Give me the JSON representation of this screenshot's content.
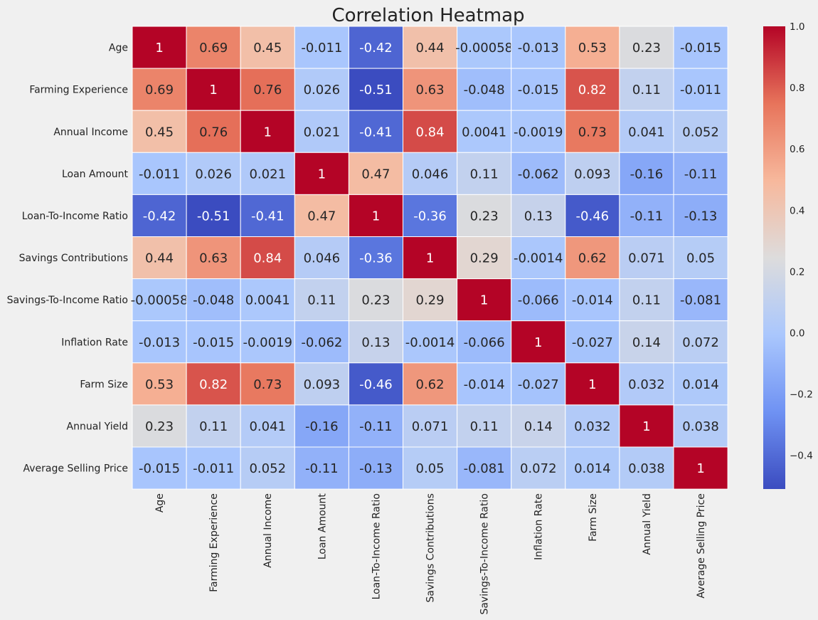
{
  "chart_data": {
    "type": "heatmap",
    "title": "Correlation Heatmap",
    "colormap": "coolwarm",
    "colormap_stops": [
      "#3b4cc0",
      "#6f92f3",
      "#aac7fd",
      "#dddcdc",
      "#f7b89c",
      "#e7745b",
      "#b40426"
    ],
    "background_color": "#f0f0f0",
    "cell_border_color": "#ffffff",
    "labels": [
      "Age",
      "Farming Experience",
      "Annual Income",
      "Loan Amount",
      "Loan-To-Income Ratio",
      "Savings Contributions",
      "Savings-To-Income Ratio",
      "Inflation Rate",
      "Farm Size",
      "Annual Yield",
      "Average Selling Price"
    ],
    "values": [
      [
        "1",
        "0.69",
        "0.45",
        "-0.011",
        "-0.42",
        "0.44",
        "-0.00058",
        "-0.013",
        "0.53",
        "0.23",
        "-0.015"
      ],
      [
        "0.69",
        "1",
        "0.76",
        "0.026",
        "-0.51",
        "0.63",
        "-0.048",
        "-0.015",
        "0.82",
        "0.11",
        "-0.011"
      ],
      [
        "0.45",
        "0.76",
        "1",
        "0.021",
        "-0.41",
        "0.84",
        "0.0041",
        "-0.0019",
        "0.73",
        "0.041",
        "0.052"
      ],
      [
        "-0.011",
        "0.026",
        "0.021",
        "1",
        "0.47",
        "0.046",
        "0.11",
        "-0.062",
        "0.093",
        "-0.16",
        "-0.11"
      ],
      [
        "-0.42",
        "-0.51",
        "-0.41",
        "0.47",
        "1",
        "-0.36",
        "0.23",
        "0.13",
        "-0.46",
        "-0.11",
        "-0.13"
      ],
      [
        "0.44",
        "0.63",
        "0.84",
        "0.046",
        "-0.36",
        "1",
        "0.29",
        "-0.0014",
        "0.62",
        "0.071",
        "0.05"
      ],
      [
        "-0.00058",
        "-0.048",
        "0.0041",
        "0.11",
        "0.23",
        "0.29",
        "1",
        "-0.066",
        "-0.014",
        "0.11",
        "-0.081"
      ],
      [
        "-0.013",
        "-0.015",
        "-0.0019",
        "-0.062",
        "0.13",
        "-0.0014",
        "-0.066",
        "1",
        "-0.027",
        "0.14",
        "0.072"
      ],
      [
        "0.53",
        "0.82",
        "0.73",
        "0.093",
        "-0.46",
        "0.62",
        "-0.014",
        "-0.027",
        "1",
        "0.032",
        "0.014"
      ],
      [
        "0.23",
        "0.11",
        "0.041",
        "-0.16",
        "-0.11",
        "0.071",
        "0.11",
        "0.14",
        "0.032",
        "1",
        "0.038"
      ],
      [
        "-0.015",
        "-0.011",
        "0.052",
        "-0.11",
        "-0.13",
        "0.05",
        "-0.081",
        "0.072",
        "0.014",
        "0.038",
        "1"
      ]
    ],
    "vmin": -0.51,
    "vmax": 1.0,
    "colorbar": {
      "ticks": [
        "1.0",
        "0.8",
        "0.6",
        "0.4",
        "0.2",
        "0.0",
        "−0.2",
        "−0.4"
      ],
      "tick_values": [
        1.0,
        0.8,
        0.6,
        0.4,
        0.2,
        0.0,
        -0.2,
        -0.4
      ],
      "range": [
        -0.51,
        1.0
      ]
    }
  }
}
